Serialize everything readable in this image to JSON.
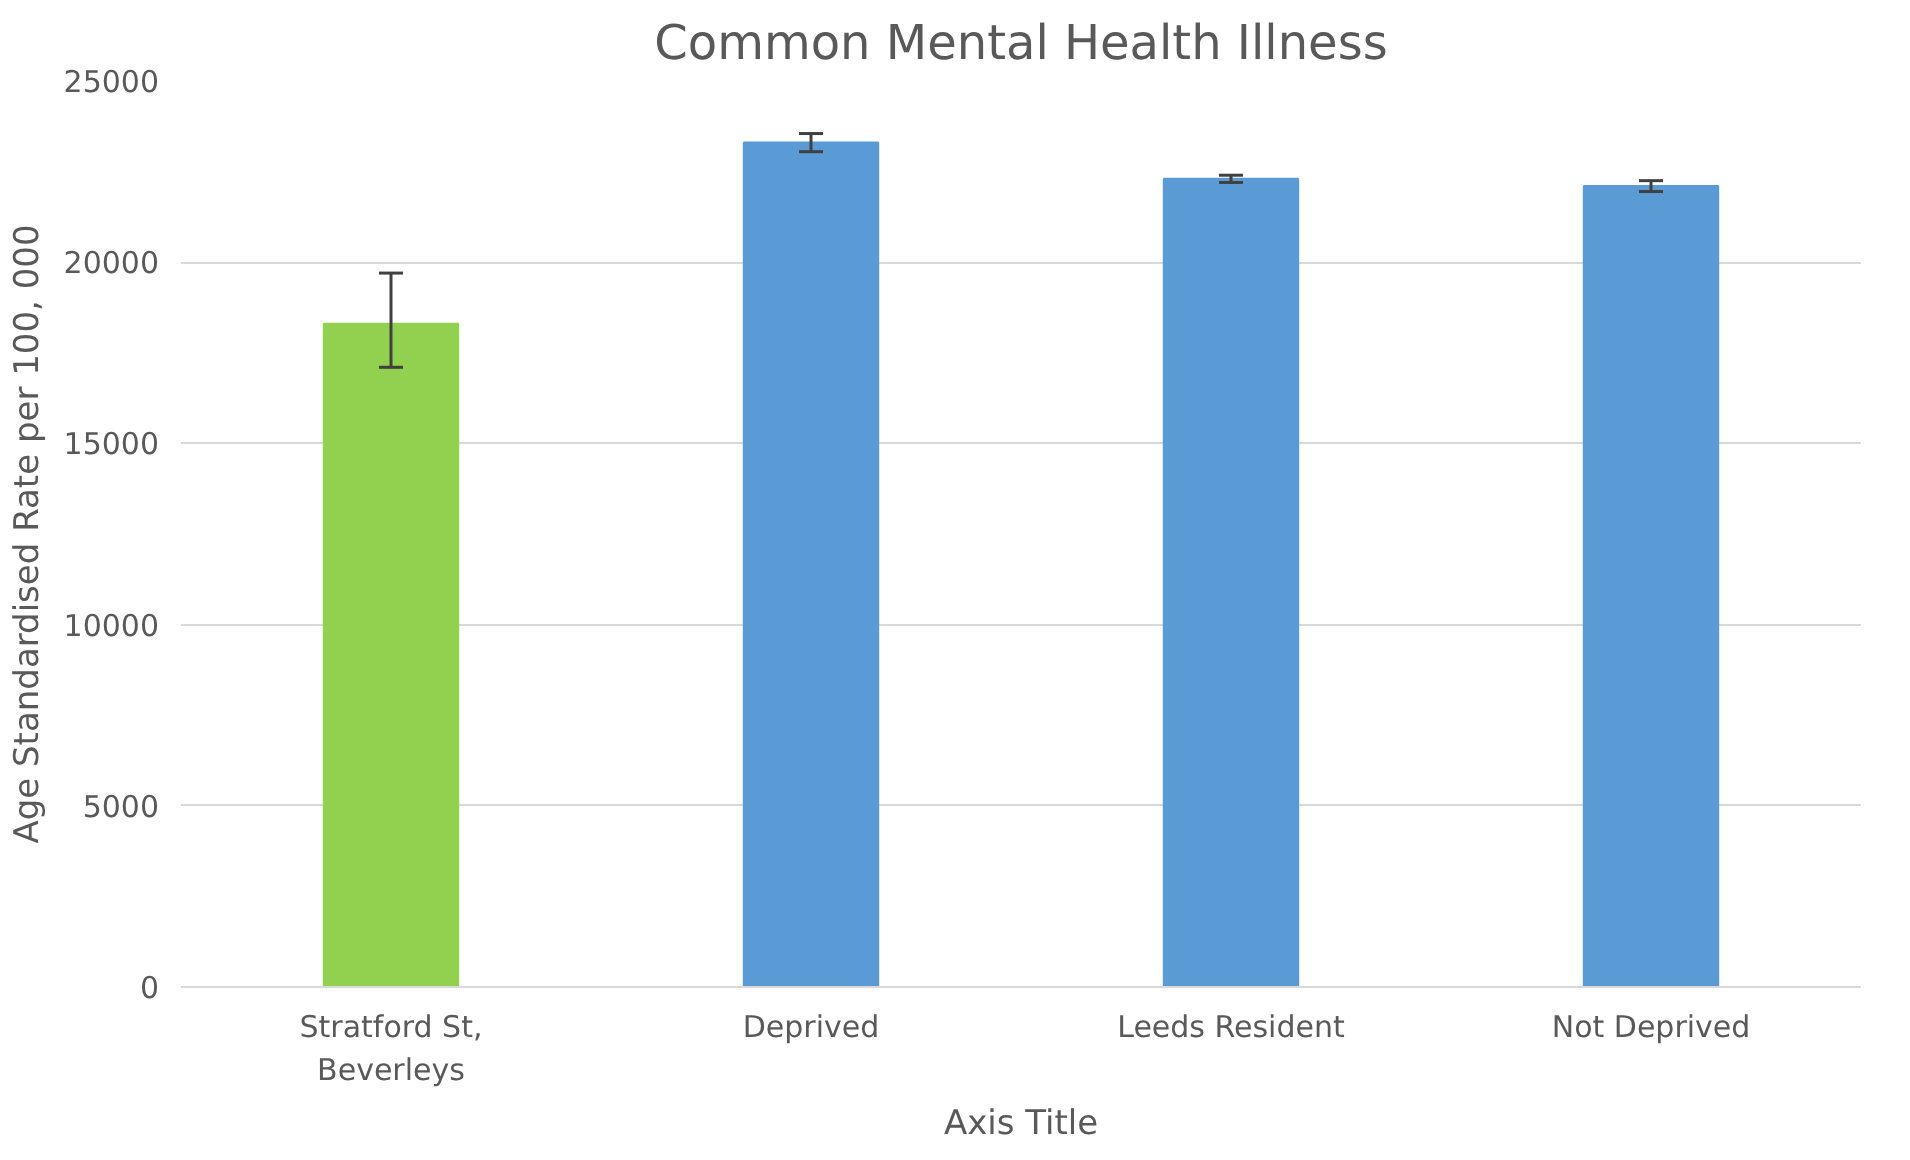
{
  "chart_data": {
    "type": "bar",
    "title": "Common Mental Health Illness",
    "xlabel": "Axis Title",
    "ylabel": "Age Standardised Rate per 100, 000",
    "categories": [
      "Stratford St, Beverleys",
      "Deprived",
      "Leeds Resident",
      "Not Deprived"
    ],
    "values": [
      18300,
      23300,
      22300,
      22100
    ],
    "colors": [
      "#92d050",
      "#5b9bd5",
      "#5b9bd5",
      "#5b9bd5"
    ],
    "errors": [
      [
        17100,
        19700
      ],
      250,
      100,
      150
    ],
    "ylim": [
      0,
      25000
    ],
    "yticks": [
      0,
      5000,
      10000,
      15000,
      20000,
      25000
    ],
    "grid": "y"
  }
}
